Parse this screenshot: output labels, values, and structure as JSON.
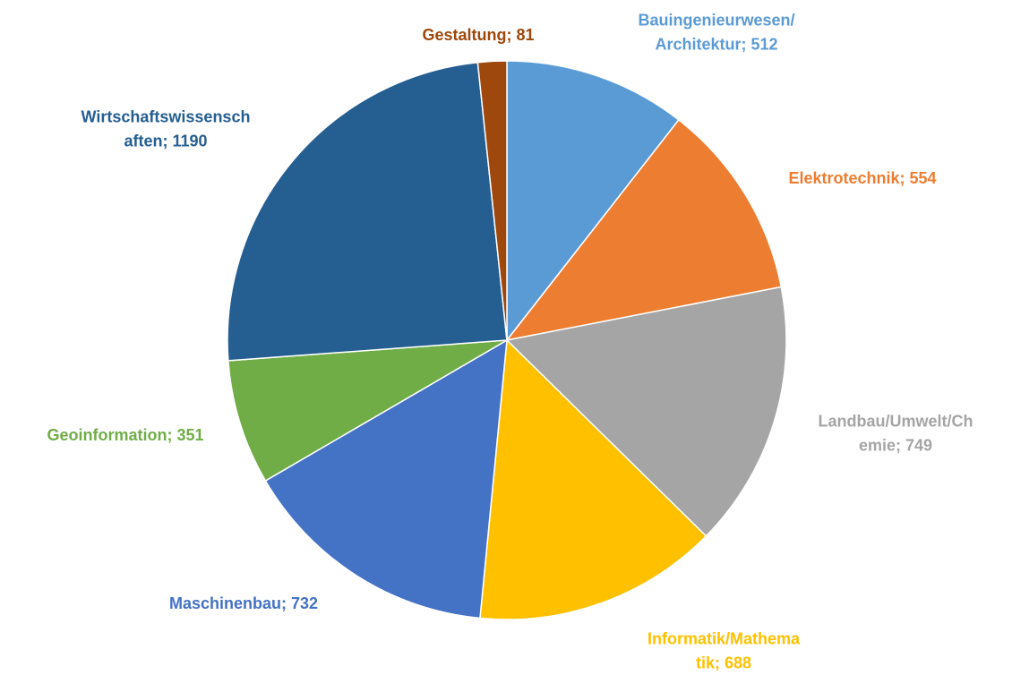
{
  "chart_data": {
    "type": "pie",
    "categories": [
      "Bauingenieurwesen/Architektur",
      "Elektrotechnik",
      "Landbau/Umwelt/Chemie",
      "Informatik/Mathematik",
      "Maschinenbau",
      "Geoinformation",
      "Wirtschaftswissenschaften",
      "Gestaltung"
    ],
    "values": [
      512,
      554,
      749,
      688,
      732,
      351,
      1190,
      81
    ],
    "value_labels": [
      "Bauingenieurwesen/\nArchitektur; 512",
      "Elektrotechnik; 554",
      "Landbau/Umwelt/Ch\nemie; 749",
      "Informatik/Mathema\ntik; 688",
      "Maschinenbau; 732",
      "Geoinformation; 351",
      "Wirtschaftswissensch\naften; 1190",
      "Gestaltung; 81"
    ],
    "colors": [
      "#5b9bd5",
      "#ed7d31",
      "#a5a5a5",
      "#ffc000",
      "#4472c4",
      "#70ad47",
      "#255e91",
      "#9e480e"
    ]
  }
}
